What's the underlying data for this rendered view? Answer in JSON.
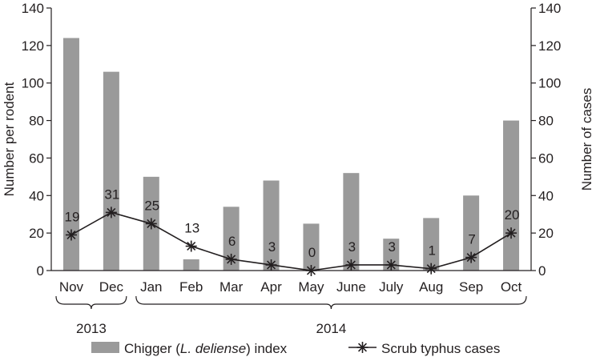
{
  "chart_data": {
    "type": "bar",
    "categories": [
      "Nov",
      "Dec",
      "Jan",
      "Feb",
      "Mar",
      "Apr",
      "May",
      "June",
      "July",
      "Aug",
      "Sep",
      "Oct"
    ],
    "series": [
      {
        "name": "Chigger (L. deliense) index",
        "legend_parts": [
          "Chigger (",
          "L. deliense",
          ") index"
        ],
        "type": "bar",
        "axis": "left",
        "values": [
          124,
          106,
          50,
          6,
          34,
          48,
          25,
          52,
          17,
          28,
          40,
          80
        ]
      },
      {
        "name": "Scrub typhus cases",
        "type": "line",
        "axis": "right",
        "values": [
          19,
          31,
          25,
          13,
          6,
          3,
          0,
          3,
          3,
          1,
          7,
          20
        ],
        "data_labels": [
          "19",
          "31",
          "25",
          "13",
          "6",
          "3",
          "0",
          "3",
          "3",
          "1",
          "7",
          "20"
        ]
      }
    ],
    "ylabel": "Number per rodent",
    "y2label": "Number of cases",
    "ylim": [
      0,
      140
    ],
    "y2lim": [
      0,
      140
    ],
    "yticks": [
      "0",
      "20",
      "40",
      "60",
      "80",
      "100",
      "120",
      "140"
    ],
    "y2ticks": [
      "0",
      "20",
      "40",
      "60",
      "80",
      "100",
      "120",
      "140"
    ],
    "year_groups": [
      {
        "label": "2013",
        "start": 0,
        "end": 1
      },
      {
        "label": "2014",
        "start": 2,
        "end": 11
      }
    ],
    "legend_position": "bottom",
    "grid": false,
    "colors": {
      "bar": "#9a9a9a",
      "line": "#231f20"
    }
  }
}
